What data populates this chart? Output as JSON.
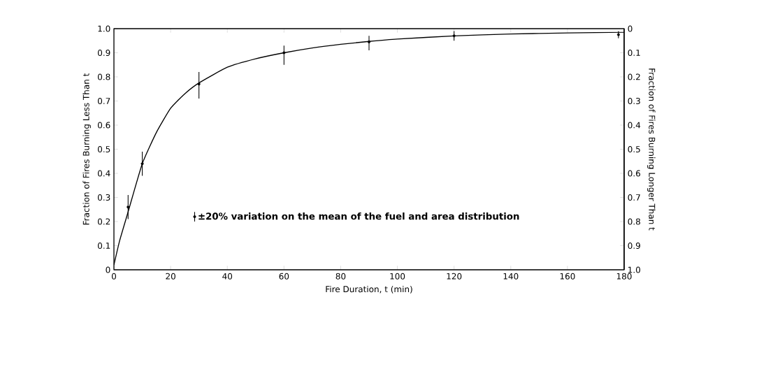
{
  "chart_data": {
    "type": "line",
    "xlabel": "Fire Duration, t (min)",
    "ylabel": "Fraction of Fires Burning Less Than t",
    "y2label": "Fraction of Fires Burning Longer Than t",
    "xlim": [
      0,
      180
    ],
    "xticks": [
      0,
      20,
      40,
      60,
      80,
      100,
      120,
      140,
      160,
      180
    ],
    "ylim": [
      0,
      1
    ],
    "yticks": [
      0,
      0.1,
      0.2,
      0.3,
      0.4,
      0.5,
      0.6,
      0.7,
      0.8,
      0.9,
      {
        "value": 1,
        "label": "1.0"
      }
    ],
    "y2lim": [
      1,
      0
    ],
    "y2ticks": [
      0,
      0.1,
      0.2,
      0.3,
      0.4,
      0.5,
      0.6,
      0.7,
      0.8,
      0.9,
      {
        "value": 1,
        "label": "1.0"
      }
    ],
    "legend": "bottom",
    "series": [
      {
        "type": "scatter",
        "name": "±20% variation on the mean of the fuel and area distribution",
        "color": "#000000",
        "marker": "circle",
        "x": [
          5,
          10,
          30,
          60,
          90,
          120,
          178
        ],
        "values": [
          0.26,
          0.44,
          0.77,
          0.9,
          0.945,
          0.97,
          0.975
        ],
        "errors": [
          [
            0.21,
            0.31
          ],
          [
            0.39,
            0.49
          ],
          [
            0.71,
            0.82
          ],
          [
            0.85,
            0.93
          ],
          [
            0.91,
            0.97
          ],
          [
            0.95,
            0.99
          ],
          [
            0.96,
            0.99
          ]
        ]
      },
      {
        "color": "#000000",
        "x": [
          0,
          2,
          5,
          10,
          15,
          20,
          25,
          30,
          40,
          50,
          60,
          70,
          80,
          90,
          100,
          120,
          140,
          160,
          180
        ],
        "values": [
          0.02,
          0.12,
          0.24,
          0.44,
          0.57,
          0.67,
          0.73,
          0.775,
          0.84,
          0.875,
          0.9,
          0.92,
          0.935,
          0.947,
          0.957,
          0.97,
          0.978,
          0.982,
          0.985
        ]
      }
    ]
  }
}
